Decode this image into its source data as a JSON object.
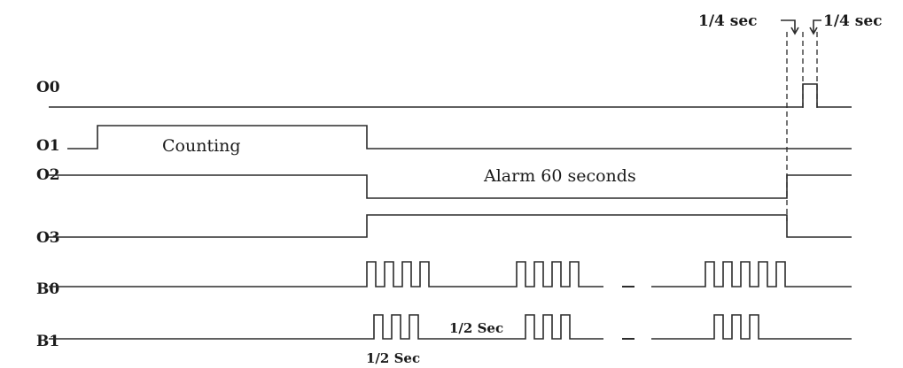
{
  "signals": {
    "o0": "O0",
    "o1": "O1",
    "o2": "O2",
    "o3": "O3",
    "b0": "B0",
    "b1": "B1"
  },
  "annotations": {
    "counting": "Counting",
    "alarm": "Alarm 60 seconds",
    "half_sec_gap": "1/2 Sec",
    "half_sec_pulse": "1/2 Sec",
    "quarter_sec_left": "1/4 sec",
    "quarter_sec_right": "1/4 sec"
  }
}
